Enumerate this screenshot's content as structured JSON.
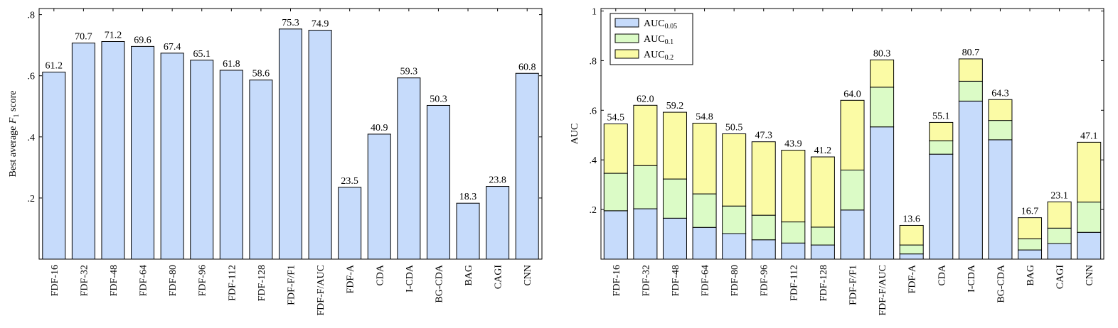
{
  "chart_data": [
    {
      "type": "bar",
      "ylabel": "Best average F1 score",
      "ylabel_main": "Best average ",
      "ylabel_var": "F",
      "ylabel_sub": "1",
      "ylabel_rest": " score",
      "ylim": [
        0,
        0.82
      ],
      "yticks": [
        0.2,
        0.4,
        0.6,
        0.8
      ],
      "yticklabels": [
        ".2",
        ".4",
        ".6",
        ".8"
      ],
      "categories": [
        "FDF-16",
        "FDF-32",
        "FDF-48",
        "FDF-64",
        "FDF-80",
        "FDF-96",
        "FDF-112",
        "FDF-128",
        "FDF-F/F1",
        "FDF-F/AUC",
        "FDF-A",
        "CDA",
        "I-CDA",
        "BG-CDA",
        "BAG",
        "CAGI",
        "CNN"
      ],
      "values": [
        0.612,
        0.707,
        0.712,
        0.696,
        0.674,
        0.651,
        0.618,
        0.586,
        0.753,
        0.749,
        0.235,
        0.409,
        0.593,
        0.503,
        0.183,
        0.238,
        0.608
      ],
      "labels": [
        "61.2",
        "70.7",
        "71.2",
        "69.6",
        "67.4",
        "65.1",
        "61.8",
        "58.6",
        "75.3",
        "74.9",
        "23.5",
        "40.9",
        "59.3",
        "50.3",
        "18.3",
        "23.8",
        "60.8"
      ],
      "color": "#c6dbfb",
      "grid": false
    },
    {
      "type": "bar",
      "stacked": true,
      "ylabel": "AUC",
      "ylim": [
        0,
        1.01
      ],
      "yticks": [
        0.2,
        0.4,
        0.6,
        0.8,
        1.0
      ],
      "yticklabels": [
        ".2",
        ".4",
        ".6",
        ".8",
        "1"
      ],
      "legend_position": "top-left",
      "categories": [
        "FDF-16",
        "FDF-32",
        "FDF-48",
        "FDF-64",
        "FDF-80",
        "FDF-96",
        "FDF-112",
        "FDF-128",
        "FDF-F/F1",
        "FDF-F/AUC",
        "FDF-A",
        "CDA",
        "I-CDA",
        "BG-CDA",
        "BAG",
        "CAGI",
        "CNN"
      ],
      "series": [
        {
          "name": "AUC0.05",
          "name_base": "AUC",
          "name_sub": "0.05",
          "color": "#c6dbfb",
          "values": [
            0.195,
            0.203,
            0.165,
            0.128,
            0.103,
            0.078,
            0.065,
            0.057,
            0.198,
            0.533,
            0.021,
            0.423,
            0.637,
            0.481,
            0.037,
            0.063,
            0.108
          ]
        },
        {
          "name": "AUC0.1",
          "name_base": "AUC",
          "name_sub": "0.1",
          "color": "#dbfbc6",
          "values": [
            0.151,
            0.174,
            0.158,
            0.135,
            0.111,
            0.099,
            0.085,
            0.072,
            0.161,
            0.16,
            0.036,
            0.054,
            0.08,
            0.078,
            0.045,
            0.062,
            0.122
          ]
        },
        {
          "name": "AUC0.2",
          "name_base": "AUC",
          "name_sub": "0.2",
          "color": "#fbfba5",
          "values": [
            0.199,
            0.243,
            0.269,
            0.285,
            0.291,
            0.296,
            0.289,
            0.283,
            0.281,
            0.11,
            0.079,
            0.074,
            0.09,
            0.084,
            0.085,
            0.106,
            0.241
          ]
        }
      ],
      "labels": [
        "54.5",
        "62.0",
        "59.2",
        "54.8",
        "50.5",
        "47.3",
        "43.9",
        "41.2",
        "64.0",
        "80.3",
        "13.6",
        "55.1",
        "80.7",
        "64.3",
        "16.7",
        "23.1",
        "47.1"
      ],
      "grid": false
    }
  ]
}
